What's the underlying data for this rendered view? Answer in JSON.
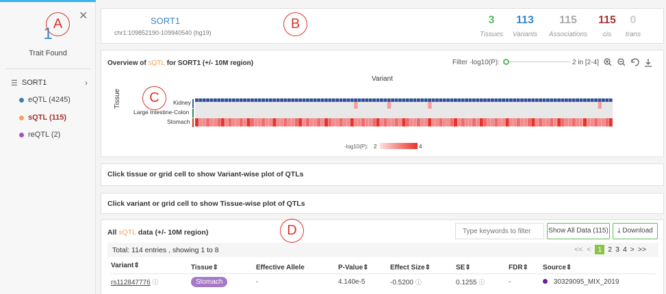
{
  "sidebar": {
    "count": "1",
    "trait_label": "Trait Found",
    "close_glyph": "✕",
    "gene": "SORT1",
    "items": [
      {
        "label": "eQTL (4245)",
        "color": "#3a7fb8"
      },
      {
        "label": "sQTL (115)",
        "color": "#f5a25d",
        "active": true
      },
      {
        "label": "reQTL (2)",
        "color": "#9b59b6"
      }
    ]
  },
  "markers": {
    "a": "A",
    "b": "B",
    "c": "C",
    "d": "D"
  },
  "gene_header": {
    "name": "SORT1",
    "position": "chr1:109852190-109940540 (hg19)",
    "stats": [
      {
        "value": "3",
        "label": "Tissues",
        "color": "#5cb85c"
      },
      {
        "value": "113",
        "label": "Variants",
        "color": "#3a86c8"
      },
      {
        "value": "115",
        "label": "Associations",
        "color": "#aaaaaa"
      },
      {
        "value": "115",
        "label": "cis",
        "color": "#a33434"
      },
      {
        "value": "0",
        "label": "trans",
        "color": "#cccccc"
      }
    ]
  },
  "overview": {
    "title_pre": "Overview of ",
    "title_hl": "sQTL",
    "title_post": " for SORT1 (+/- 10M region)",
    "filter_label": "Filter -log10(P):",
    "filter_value": "2 in [2-4]",
    "x_axis_label": "Variant",
    "y_axis_label": "Tissue",
    "tissues": [
      "Kidney",
      "Large Intestine-Colon",
      "Stomach"
    ],
    "tissue_colors": [
      "#3a5fa8",
      "#2e8b57",
      "#c0392b"
    ],
    "legend_label": "-log10(P):",
    "legend_min": "2",
    "legend_max": "4",
    "toolbar_icons": [
      "zoom-in-icon",
      "zoom-out-icon",
      "refresh-icon",
      "download-icon"
    ]
  },
  "variant_panel": {
    "text": "Click tissue or grid cell to show Variant-wise plot of QTLs"
  },
  "tissue_panel": {
    "text": "Click variant or grid cell to show Tissue-wise plot of QTLs"
  },
  "data_table": {
    "title_pre": "All ",
    "title_hl": "sQTL",
    "title_post": " data (+/- 10M region)",
    "search_placeholder": "Type keywords to filter",
    "show_all": "Show All Data (115)",
    "download": "⤓ Download",
    "total": "Total: 114 entries , showing 1 to 8",
    "pagination": [
      "<<",
      "<",
      "1",
      "2",
      "3",
      "4",
      ">",
      ">>"
    ],
    "current_page": "1",
    "columns": [
      "Variant⇕",
      "Tissue⇕",
      "Effective Allele",
      "P-Value⇕",
      "Effect Size⇕",
      "SE⇕",
      "FDR⇕",
      "Source⇕"
    ],
    "rows": [
      {
        "variant": "rs112847776",
        "tissue": "Stomach",
        "allele": "-",
        "pvalue": "4.140e-5",
        "effect": "-0.5200",
        "se": "0.1255",
        "fdr": "-",
        "source": "30329095_MIX_2019",
        "source_color": "#6a1b9a"
      }
    ]
  },
  "colors": {
    "accent": "#3cb4e5",
    "highlight": "#f5a25d",
    "heat_low": "#fde0e0",
    "heat_high": "#e8322b",
    "kidney_band": "#2f4f9c"
  }
}
